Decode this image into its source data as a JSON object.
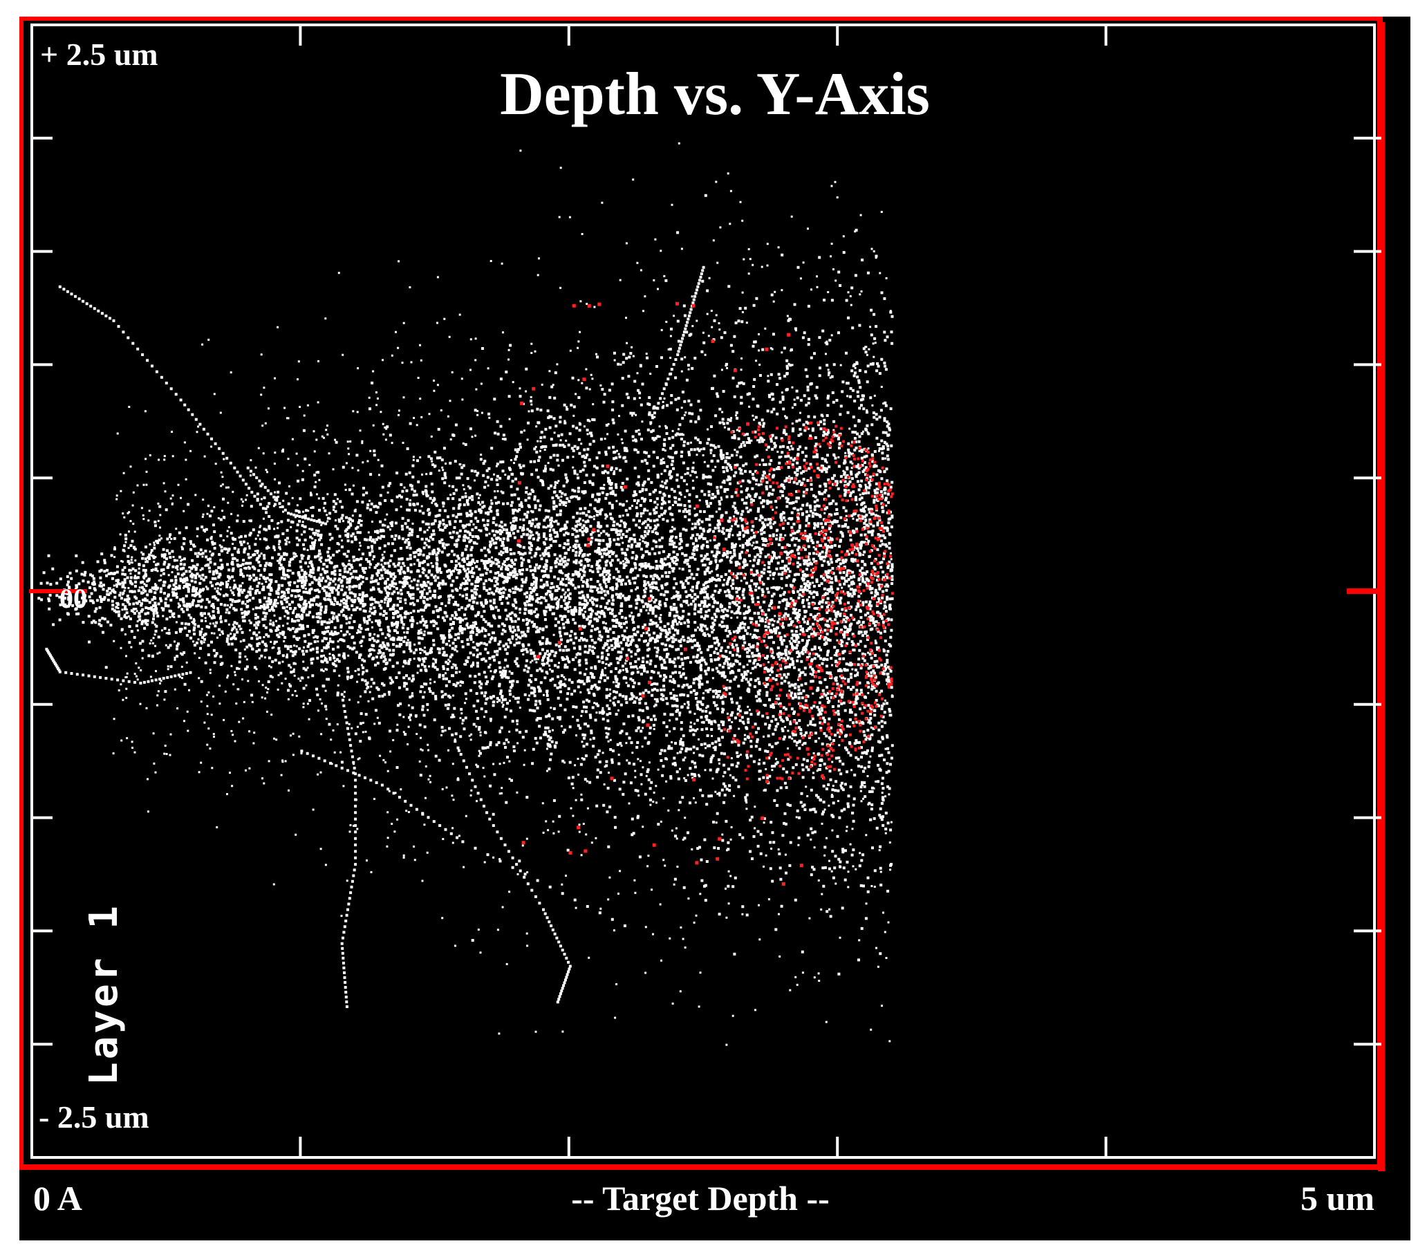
{
  "chart_data": {
    "type": "scatter",
    "title": "Depth vs. Y-Axis",
    "xlabel": "-- Target Depth --",
    "x_min_label": "0 A",
    "x_max_label": "5 um",
    "y_max_label": "+ 2.5 um",
    "y_min_label": "- 2.5 um",
    "y_zero_label": "00",
    "layer_label": "Layer 1",
    "x_unit": "um",
    "y_unit": "um",
    "xlim": [
      0,
      5
    ],
    "ylim": [
      -2.5,
      2.5
    ],
    "x_tick_count": 5,
    "y_tick_count": 5,
    "grid": false,
    "legend": "none",
    "series": [
      {
        "point_color": "#ffffff",
        "description_of_distribution": "dense ion trajectory plume",
        "plume_apex": [
          0.0,
          0.0
        ],
        "plume_center_depth": 2.5,
        "plume_max_depth": 3.2,
        "plume_half_width_at_center": 0.75,
        "stray_tracks_min_y": -1.9,
        "stray_tracks_max_y": 1.4
      },
      {
        "point_color": "#ff2020",
        "description_of_distribution": "stopped ion end points",
        "depth_range": [
          2.5,
          3.2
        ],
        "y_range": [
          -0.85,
          0.75
        ]
      }
    ]
  },
  "colors": {
    "background": "#000000",
    "frame": "#ffffff",
    "border": "#ff0000",
    "tracks": "#ffffff",
    "endpoints": "#ff2020"
  }
}
